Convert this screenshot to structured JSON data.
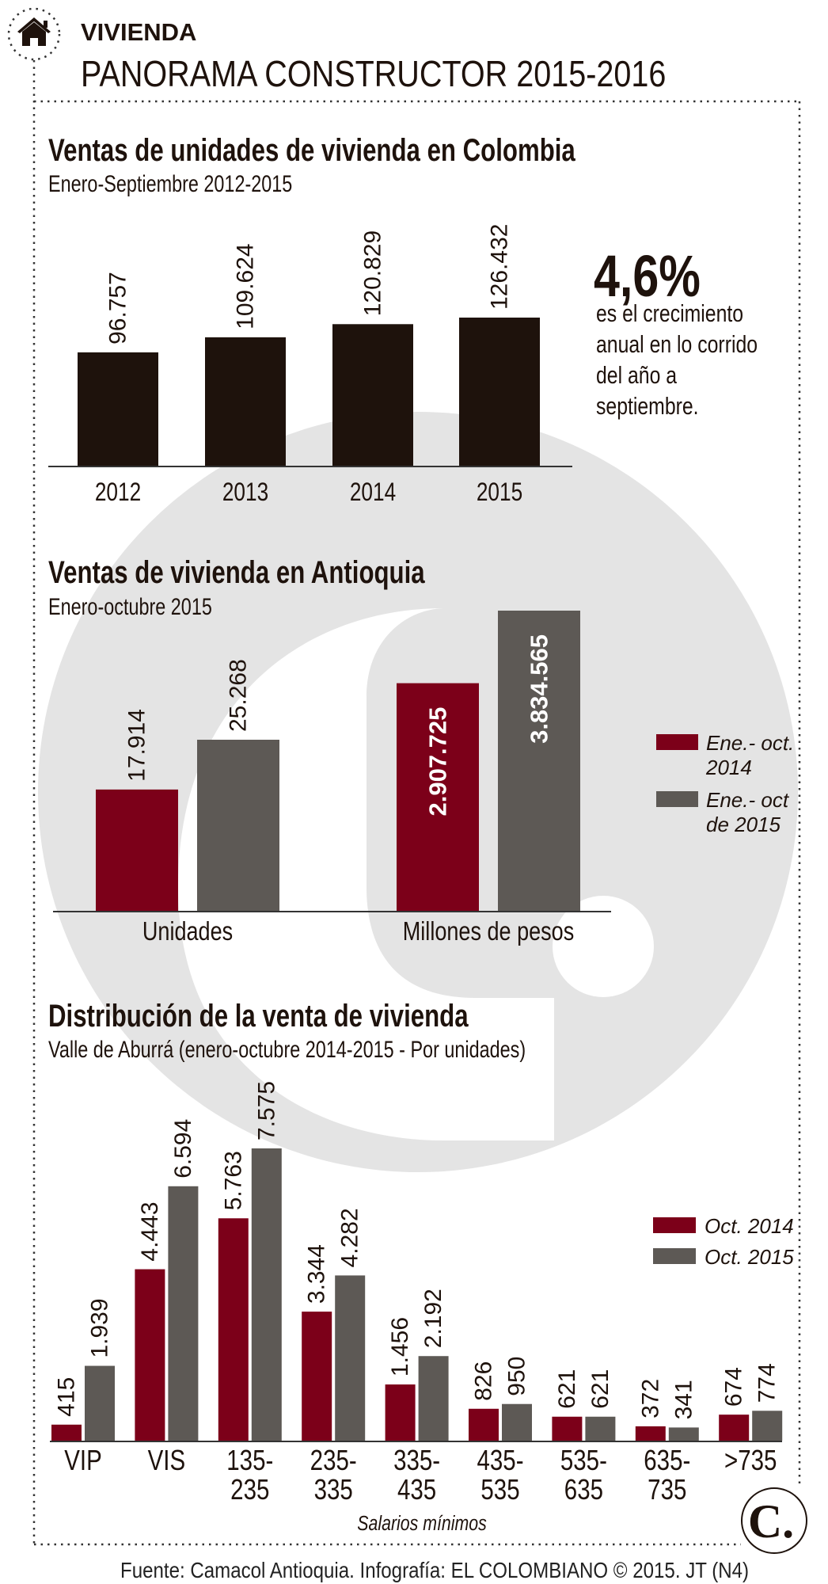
{
  "header": {
    "section": "VIVIENDA",
    "title": "PANORAMA CONSTRUCTOR 2015-2016",
    "icon": "home-icon"
  },
  "colors": {
    "dark_bar": "#1e120c",
    "red": "#7c0019",
    "gray": "#5d5955",
    "watermark": "#e4e4e4"
  },
  "highlight": {
    "value": "4,6%",
    "lines": [
      "es el crecimiento",
      "anual en lo corrido",
      "del año a",
      "septiembre."
    ]
  },
  "chart_data": [
    {
      "type": "bar",
      "title": "Ventas de unidades de vivienda en Colombia",
      "subtitle": "Enero-Septiembre 2012-2015",
      "categories": [
        "2012",
        "2013",
        "2014",
        "2015"
      ],
      "values": [
        96757,
        109624,
        120829,
        126432
      ],
      "labels": [
        "96.757",
        "109.624",
        "120.829",
        "126.432"
      ],
      "xlabel": "",
      "ylabel": "",
      "grid": false
    },
    {
      "type": "bar",
      "title": "Ventas de vivienda en Antioquia",
      "subtitle": "Enero-octubre 2015",
      "categories": [
        "Unidades",
        "Millones de pesos"
      ],
      "series": [
        {
          "name": "Ene.- oct. 2014",
          "legend_lines": [
            "Ene.- oct.",
            "2014"
          ],
          "values": [
            17914,
            2907725
          ],
          "labels": [
            "17.914",
            "2.907.725"
          ]
        },
        {
          "name": "Ene.- oct de 2015",
          "legend_lines": [
            "Ene.- oct",
            "de  2015"
          ],
          "values": [
            25268,
            3834565
          ],
          "labels": [
            "25.268",
            "3.834.565"
          ]
        }
      ],
      "legend": "right",
      "grid": false
    },
    {
      "type": "bar",
      "title": "Distribución de la venta de vivienda",
      "subtitle": "Valle de Aburrá (enero-octubre 2014-2015 - Por unidades)",
      "categories": [
        [
          "VIP"
        ],
        [
          "VIS"
        ],
        [
          "135-",
          "235"
        ],
        [
          "235-",
          "335"
        ],
        [
          "335-",
          "435"
        ],
        [
          "435-",
          "535"
        ],
        [
          "535-",
          "635"
        ],
        [
          "635-",
          "735"
        ],
        [
          ">735"
        ]
      ],
      "series": [
        {
          "name": "Oct. 2014",
          "values": [
            415,
            4443,
            5763,
            3344,
            1456,
            826,
            621,
            372,
            674
          ],
          "labels": [
            "415",
            "4.443",
            "5.763",
            "3.344",
            "1.456",
            "826",
            "621",
            "372",
            "674"
          ]
        },
        {
          "name": "Oct. 2015",
          "values": [
            1939,
            6594,
            7575,
            4282,
            2192,
            950,
            621,
            341,
            774
          ],
          "labels": [
            "1.939",
            "6.594",
            "7.575",
            "4.282",
            "2.192",
            "950",
            "621",
            "341",
            "774"
          ]
        }
      ],
      "xlabel": "Salarios mínimos",
      "legend": "right",
      "grid": false
    }
  ],
  "footer": {
    "source": "Fuente: Camacol Antioquia. Infografía: EL COLOMBIANO © 2015. JT (N4)",
    "logo_text": "C."
  }
}
